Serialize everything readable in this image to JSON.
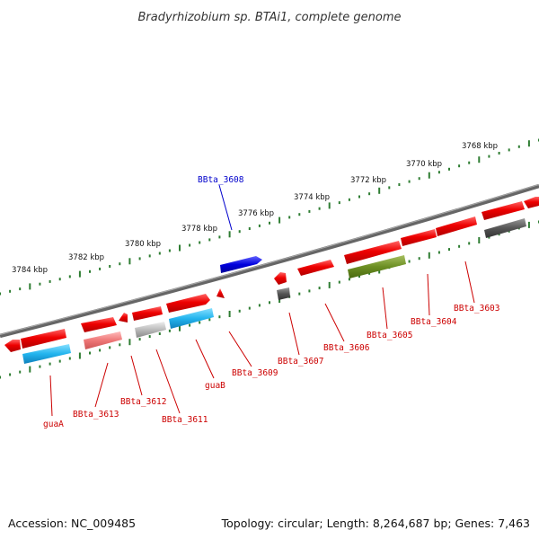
{
  "title": "Bradyrhizobium sp. BTAi1, complete genome",
  "accession": "Accession: NC_009485",
  "topology": "Topology: circular; Length: 8,264,687 bp; Genes: 7,463",
  "ticks": [
    "3784 kbp",
    "3782 kbp",
    "3780 kbp",
    "3778 kbp",
    "3776 kbp",
    "3774 kbp",
    "3772 kbp",
    "3770 kbp",
    "3768 kbp"
  ],
  "genes_top": [
    {
      "label": "BBta_3608",
      "color": "#0000cc"
    }
  ],
  "genes_bottom": [
    {
      "label": "guaA",
      "color": "#cc0000"
    },
    {
      "label": "BBta_3613",
      "color": "#cc0000"
    },
    {
      "label": "BBta_3612",
      "color": "#cc0000"
    },
    {
      "label": "BBta_3611",
      "color": "#cc0000"
    },
    {
      "label": "guaB",
      "color": "#cc0000"
    },
    {
      "label": "BBta_3609",
      "color": "#cc0000"
    },
    {
      "label": "BBta_3607",
      "color": "#cc0000"
    },
    {
      "label": "BBta_3606",
      "color": "#cc0000"
    },
    {
      "label": "BBta_3605",
      "color": "#cc0000"
    },
    {
      "label": "BBta_3604",
      "color": "#cc0000"
    },
    {
      "label": "BBta_3603",
      "color": "#cc0000"
    }
  ],
  "colors": {
    "cds_red": "#ee0000",
    "cyan": "#22aadd",
    "pink": "#ee7777",
    "silver": "#aaaaaa",
    "gray": "#555555",
    "olive": "#6b8e23",
    "blue": "#0000dd",
    "backbone": "#666666",
    "tick_green": "#2e7d32"
  }
}
